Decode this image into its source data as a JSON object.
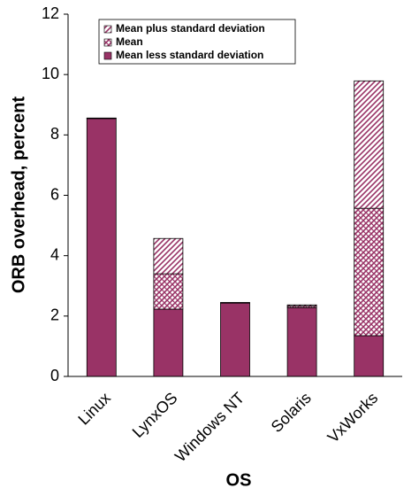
{
  "chart_data": {
    "type": "stacked_bar",
    "x_label": "OS",
    "y_label": "ORB overhead, percent",
    "categories": [
      "Linux",
      "LynxOS",
      "Windows NT",
      "Solaris",
      "VxWorks"
    ],
    "series": [
      {
        "name": "Mean less standard deviation",
        "color": "#993366",
        "fill": "solid",
        "values": [
          8.54,
          2.23,
          2.43,
          2.28,
          1.35
        ]
      },
      {
        "name": "Mean",
        "color": "#993366",
        "fill": "crosshatch",
        "values": [
          0.01,
          1.17,
          0.01,
          0.05,
          4.22
        ]
      },
      {
        "name": "Mean plus standard deviation",
        "color": "#993366",
        "fill": "diagonal",
        "values": [
          0.01,
          1.17,
          0.01,
          0.04,
          4.22
        ]
      }
    ],
    "ylim": [
      0,
      12
    ],
    "yticks": [
      0,
      2,
      4,
      6,
      8,
      10,
      12
    ],
    "grid": false
  }
}
